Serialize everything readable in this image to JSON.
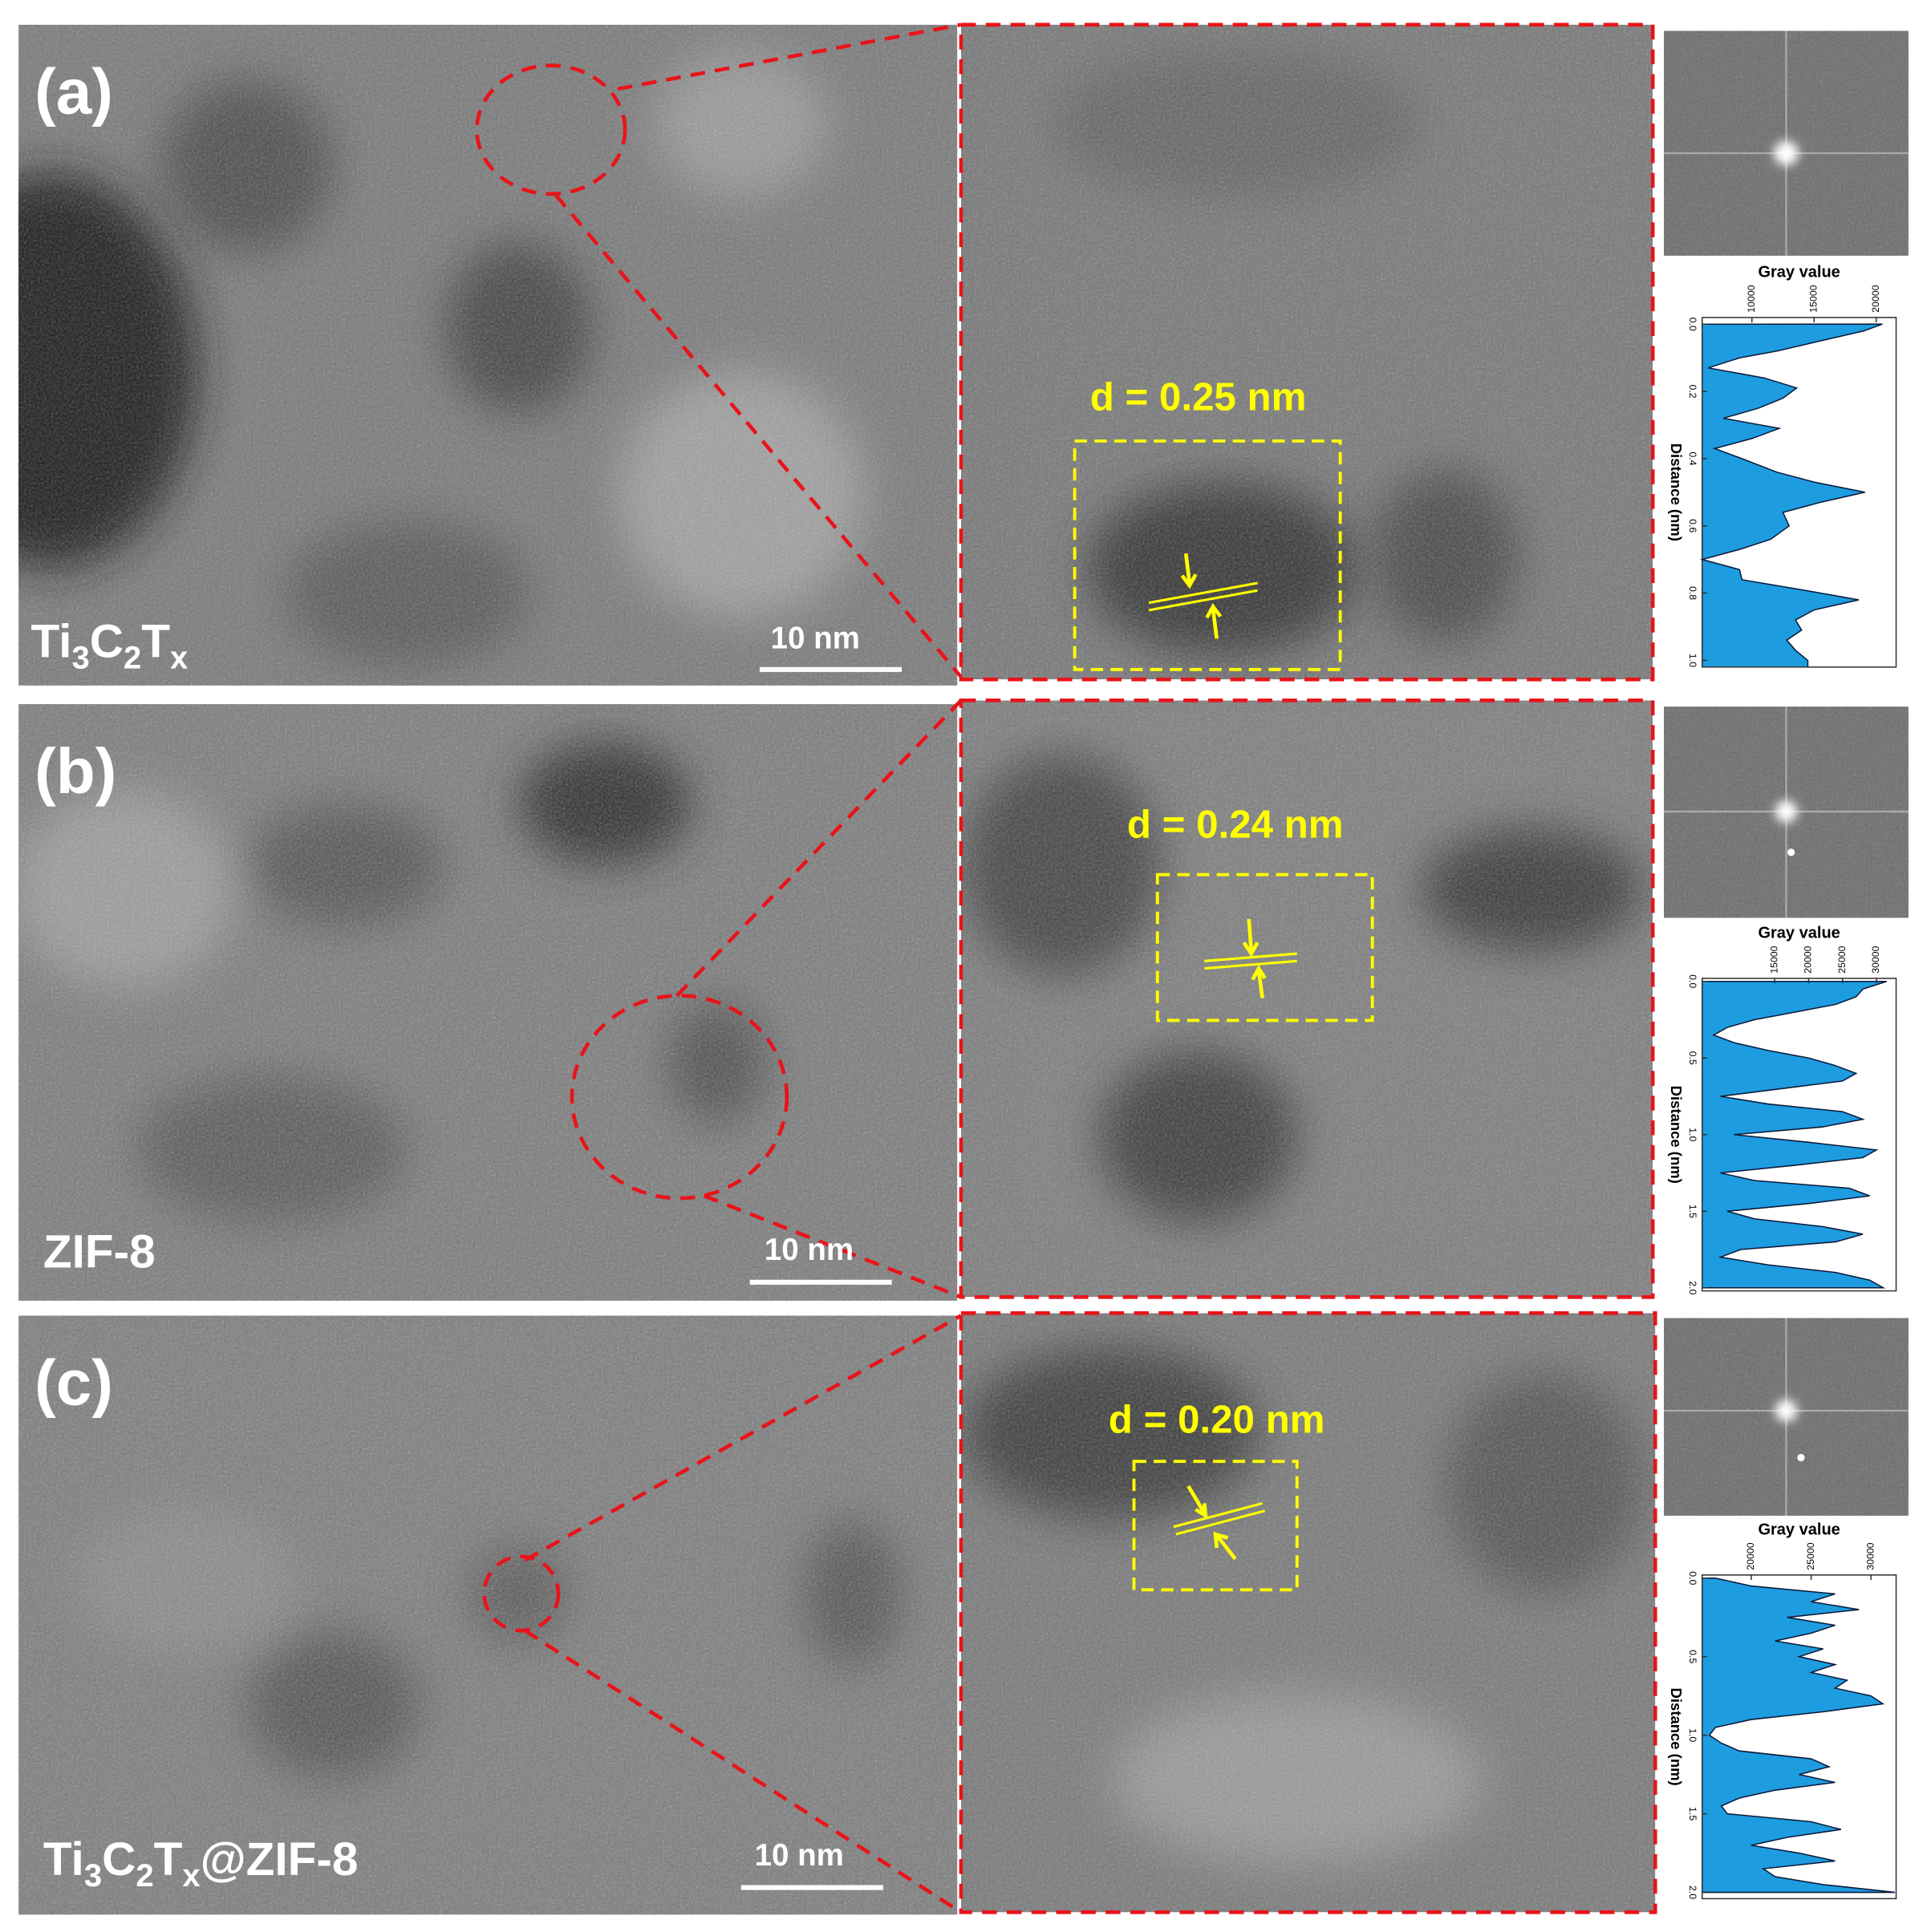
{
  "panels": [
    {
      "label": "(a)",
      "sample_label": [
        {
          "text": "Ti"
        },
        {
          "sub": "3"
        },
        {
          "text": "C"
        },
        {
          "sub": "2"
        },
        {
          "text": "T"
        },
        {
          "sub": "x"
        }
      ],
      "scale_bar": "10 nm",
      "d_spacing": "d = 0.25 nm"
    },
    {
      "label": "(b)",
      "sample_label": [
        {
          "text": "ZIF-8"
        }
      ],
      "scale_bar": "10 nm",
      "d_spacing": "d = 0.24 nm"
    },
    {
      "label": "(c)",
      "sample_label": [
        {
          "text": "Ti"
        },
        {
          "sub": "3"
        },
        {
          "text": "C"
        },
        {
          "sub": "2"
        },
        {
          "text": "T"
        },
        {
          "sub": "x"
        },
        {
          "text": "@ZIF-8"
        }
      ],
      "scale_bar": "10 nm",
      "d_spacing": "d = 0.20 nm"
    }
  ],
  "chart_data": [
    {
      "type": "area",
      "orientation": "horizontal",
      "x_label": "Distance (nm)",
      "y_label": "Gray value",
      "color": "#1e9ce0",
      "x": [
        0,
        0.02,
        0.05,
        0.08,
        0.1,
        0.13,
        0.16,
        0.19,
        0.22,
        0.25,
        0.28,
        0.31,
        0.34,
        0.37,
        0.4,
        0.44,
        0.47,
        0.5,
        0.53,
        0.56,
        0.6,
        0.64,
        0.67,
        0.7,
        0.73,
        0.76,
        0.79,
        0.82,
        0.85,
        0.88,
        0.91,
        0.94,
        0.97,
        1.0,
        1.02
      ],
      "values": [
        20500,
        19000,
        15500,
        12000,
        9000,
        6500,
        11000,
        13600,
        12500,
        10500,
        7700,
        12200,
        10000,
        7000,
        9200,
        12000,
        15000,
        19100,
        15500,
        12500,
        13000,
        11500,
        9000,
        6000,
        9000,
        9200,
        14000,
        18600,
        15000,
        13500,
        14000,
        12800,
        13500,
        14500,
        14500
      ],
      "xlim": [
        -0.02,
        1.02
      ],
      "xticks": [
        {
          "value": 0,
          "label": "0.0"
        },
        0.2,
        0.4,
        0.6,
        0.8,
        {
          "value": 1,
          "label": "1.0"
        }
      ],
      "ylim": [
        6000,
        21600
      ],
      "yticks": [
        10000,
        15000,
        20000
      ]
    },
    {
      "type": "area",
      "orientation": "horizontal",
      "x_label": "Distance (nm)",
      "y_label": "Gray value",
      "color": "#1e9ce0",
      "x": [
        0,
        0.05,
        0.1,
        0.15,
        0.2,
        0.25,
        0.3,
        0.35,
        0.4,
        0.45,
        0.5,
        0.55,
        0.6,
        0.65,
        0.7,
        0.75,
        0.8,
        0.85,
        0.9,
        0.95,
        1.0,
        1.05,
        1.1,
        1.15,
        1.2,
        1.25,
        1.3,
        1.35,
        1.4,
        1.45,
        1.5,
        1.55,
        1.6,
        1.65,
        1.7,
        1.75,
        1.8,
        1.85,
        1.9,
        1.95,
        2.0
      ],
      "values": [
        31500,
        28000,
        27000,
        24000,
        18000,
        12000,
        8000,
        6000,
        9000,
        14000,
        20000,
        24000,
        27000,
        25000,
        16000,
        7000,
        14000,
        25000,
        28000,
        22000,
        9000,
        20000,
        30000,
        28000,
        18000,
        7000,
        12000,
        26000,
        29000,
        20000,
        8000,
        12000,
        22000,
        28000,
        24000,
        10000,
        7000,
        14000,
        24000,
        29000,
        31000
      ],
      "xlim": [
        -0.02,
        2.02
      ],
      "xticks": [
        {
          "value": 0,
          "label": "0.0"
        },
        0.5,
        {
          "value": 1,
          "label": "1.0"
        },
        1.5,
        {
          "value": 2,
          "label": "2.0"
        }
      ],
      "ylim": [
        4300,
        32900
      ],
      "yticks": [
        15000,
        20000,
        25000,
        30000
      ]
    },
    {
      "type": "area",
      "orientation": "horizontal",
      "x_label": "Distance (nm)",
      "y_label": "Gray value",
      "color": "#1e9ce0",
      "x": [
        0,
        0.05,
        0.1,
        0.15,
        0.2,
        0.25,
        0.3,
        0.35,
        0.4,
        0.45,
        0.5,
        0.55,
        0.6,
        0.65,
        0.7,
        0.75,
        0.8,
        0.85,
        0.9,
        0.95,
        1.0,
        1.05,
        1.1,
        1.15,
        1.2,
        1.25,
        1.3,
        1.35,
        1.4,
        1.45,
        1.5,
        1.55,
        1.6,
        1.65,
        1.7,
        1.75,
        1.8,
        1.85,
        1.9,
        1.95,
        2.0
      ],
      "values": [
        17000,
        20000,
        27000,
        25000,
        29000,
        23000,
        27000,
        25000,
        22000,
        26000,
        24000,
        27000,
        25000,
        28000,
        27000,
        30000,
        31000,
        26000,
        20000,
        17000,
        16500,
        17500,
        19000,
        25000,
        26500,
        24000,
        27000,
        22000,
        19000,
        17500,
        18000,
        25000,
        27500,
        23000,
        20000,
        24000,
        27000,
        21000,
        22000,
        26000,
        32000
      ],
      "xlim": [
        -0.02,
        2.04
      ],
      "xticks": [
        {
          "value": 0,
          "label": "0.0"
        },
        0.5,
        {
          "value": 1,
          "label": "1.0"
        },
        1.5,
        {
          "value": 2,
          "label": "2.0"
        }
      ],
      "ylim": [
        15900,
        32100
      ],
      "yticks": [
        20000,
        25000,
        30000
      ]
    }
  ]
}
